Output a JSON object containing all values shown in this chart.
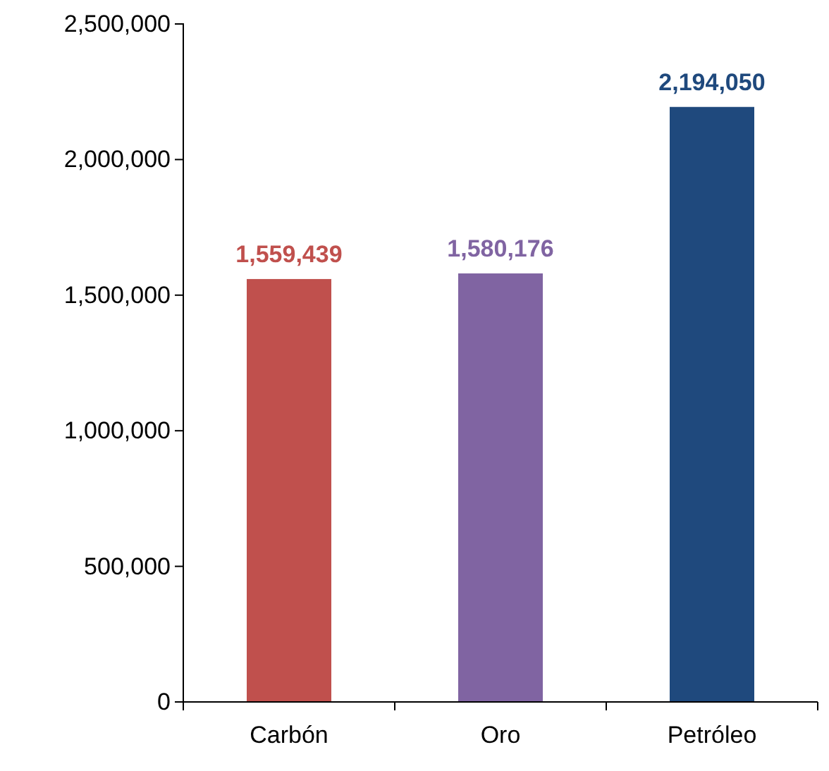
{
  "chart_data": {
    "type": "bar",
    "categories": [
      "Carbón",
      "Oro",
      "Petróleo"
    ],
    "values": [
      1559439,
      1580176,
      2194050
    ],
    "colors": [
      "#c0504d",
      "#8064a2",
      "#1f497d"
    ],
    "ylim": [
      0,
      2500000
    ],
    "yticks": [
      0,
      {
        "value": 500000,
        "label": "500,000"
      },
      {
        "value": 1000000,
        "label": "1,000,000"
      },
      {
        "value": 1500000,
        "label": "1,500,000"
      },
      {
        "value": 2000000,
        "label": "2,000,000"
      },
      {
        "value": 2500000,
        "label": "2,500,000"
      }
    ],
    "value_labels": [
      "1,559,439",
      "1,580,176",
      "2,194,050"
    ],
    "grid": false
  }
}
